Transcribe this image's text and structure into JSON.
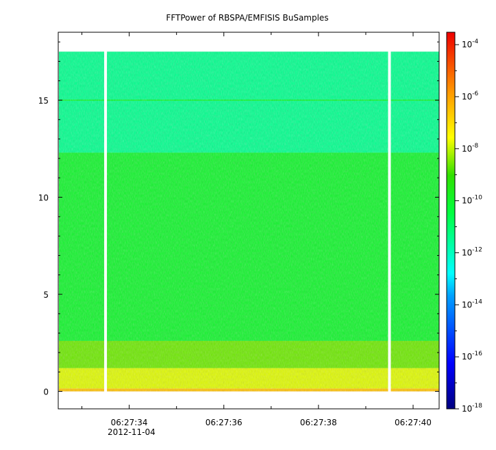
{
  "chart_data": {
    "type": "heatmap",
    "title": "FFTPower of RBSPA/EMFISIS  BuSamples",
    "xlabel": "",
    "ylabel": "",
    "x_tick_labels": [
      "06:27:34",
      "06:27:36",
      "06:27:38",
      "06:27:40"
    ],
    "x_ticks_seconds": [
      34,
      36,
      38,
      40
    ],
    "x_minor_seconds": [
      33,
      35,
      37,
      39
    ],
    "x_date_label": "2012-11-04",
    "xlim_seconds": [
      32.5,
      40.55
    ],
    "y_ticks": [
      0,
      5,
      10,
      15
    ],
    "ylim": [
      -0.9,
      18.5
    ],
    "data_extent_y": [
      0,
      17.5
    ],
    "gaps_seconds": [
      33.5,
      39.5
    ],
    "colorbar": {
      "scale": "log",
      "range": [
        1e-18,
        0.0003
      ],
      "tick_exponents": [
        -18,
        -16,
        -14,
        -12,
        -10,
        -8,
        -6,
        -4
      ],
      "tick_base": "10"
    },
    "bands": [
      {
        "y_from": 0,
        "y_to": 0.15,
        "log_power": -6.5
      },
      {
        "y_from": 0.15,
        "y_to": 1.2,
        "log_power": -7.8
      },
      {
        "y_from": 1.2,
        "y_to": 2.6,
        "log_power": -8.6
      },
      {
        "y_from": 2.6,
        "y_to": 12.3,
        "log_power": -10.0
      },
      {
        "y_from": 12.3,
        "y_to": 17.5,
        "log_power": -11.4
      }
    ],
    "lines": [
      {
        "y": 15.0,
        "log_power": -10.2
      }
    ]
  }
}
